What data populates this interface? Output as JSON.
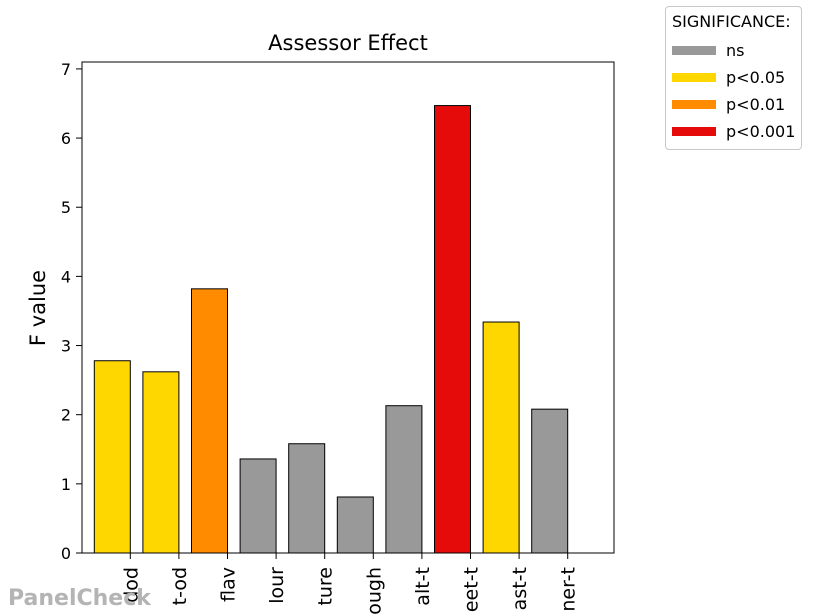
{
  "chart_data": {
    "type": "bar",
    "title": "Assessor Effect",
    "xlabel": "",
    "ylabel": "F value",
    "ylim": [
      0,
      7.1
    ],
    "yticks": [
      0,
      1,
      2,
      3,
      4,
      5,
      6,
      7
    ],
    "categories": [
      "dod",
      "t-od",
      "flav",
      "lour",
      "ture",
      "ough",
      "alt-t",
      "eet-t",
      "ast-t",
      "ner-t"
    ],
    "values": [
      2.78,
      2.62,
      3.82,
      1.36,
      1.58,
      0.81,
      2.13,
      6.47,
      3.34,
      2.08
    ],
    "significance": [
      "p<0.05",
      "p<0.05",
      "p<0.01",
      "ns",
      "ns",
      "ns",
      "ns",
      "p<0.001",
      "p<0.05",
      "ns"
    ],
    "grid": false,
    "legend_position": "outside-top-right"
  },
  "legend": {
    "title": "SIGNIFICANCE:",
    "items": [
      {
        "label": "ns",
        "color": "#999999"
      },
      {
        "label": "p<0.05",
        "color": "#FFD700"
      },
      {
        "label": "p<0.01",
        "color": "#FF8C00"
      },
      {
        "label": "p<0.001",
        "color": "#E50B0B"
      }
    ]
  },
  "watermark": "PanelCheck"
}
